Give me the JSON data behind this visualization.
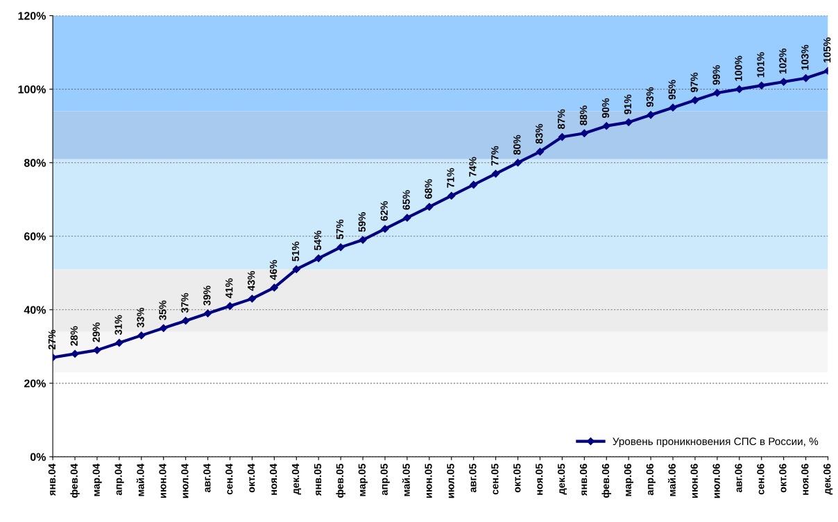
{
  "chart_data": {
    "type": "line",
    "categories": [
      "янв.04",
      "фев.04",
      "мар.04",
      "апр.04",
      "май.04",
      "июн.04",
      "июл.04",
      "авг.04",
      "сен.04",
      "окт.04",
      "ноя.04",
      "дек.04",
      "янв.05",
      "фев.05",
      "мар.05",
      "апр.05",
      "май.05",
      "июн.05",
      "июл.05",
      "авг.05",
      "сен.05",
      "окт.05",
      "ноя.05",
      "дек.05",
      "янв.06",
      "фев.06",
      "мар.06",
      "апр.06",
      "май.06",
      "июн.06",
      "июл.06",
      "авг.06",
      "сен.06",
      "окт.06",
      "ноя.06",
      "дек.06"
    ],
    "series": [
      {
        "name": "Уровень проникновения СПС в России, %",
        "color": "#000080",
        "values": [
          27,
          28,
          29,
          31,
          33,
          35,
          37,
          39,
          41,
          43,
          46,
          51,
          54,
          57,
          59,
          62,
          65,
          68,
          71,
          74,
          77,
          80,
          83,
          87,
          88,
          90,
          91,
          93,
          95,
          97,
          99,
          100,
          101,
          102,
          103,
          105
        ],
        "value_labels": [
          "27%",
          "28%",
          "29%",
          "31%",
          "33%",
          "35%",
          "37%",
          "39%",
          "41%",
          "43%",
          "46%",
          "51%",
          "54%",
          "57%",
          "59%",
          "62%",
          "65%",
          "68%",
          "71%",
          "74%",
          "77%",
          "80%",
          "83%",
          "87%",
          "88%",
          "90%",
          "91%",
          "93%",
          "95%",
          "97%",
          "99%",
          "100%",
          "101%",
          "102%",
          "103%",
          "105%"
        ]
      }
    ],
    "ylim": [
      0,
      120
    ],
    "yticks": [
      {
        "value": 0,
        "label": "0%"
      },
      {
        "value": 20,
        "label": "20%"
      },
      {
        "value": 40,
        "label": "40%"
      },
      {
        "value": 60,
        "label": "60%"
      },
      {
        "value": 80,
        "label": "80%"
      },
      {
        "value": 100,
        "label": "100%"
      },
      {
        "value": 120,
        "label": "120%"
      }
    ],
    "bands": [
      {
        "axis": "y",
        "from": 23,
        "to": 34,
        "color": "#f6f6f6"
      },
      {
        "axis": "y",
        "from": 34,
        "to": 51,
        "color": "#ececec"
      },
      {
        "axis": "y",
        "from": 51,
        "to": 81,
        "color": "#cde9fc"
      },
      {
        "axis": "y",
        "from": 81,
        "to": 94,
        "color": "#a8caee"
      },
      {
        "axis": "y",
        "from": 94,
        "to": 120,
        "color": "#99ccff"
      }
    ],
    "grid": "y",
    "legend": "bottom right",
    "marker": "diamond",
    "line_style": "solid"
  }
}
